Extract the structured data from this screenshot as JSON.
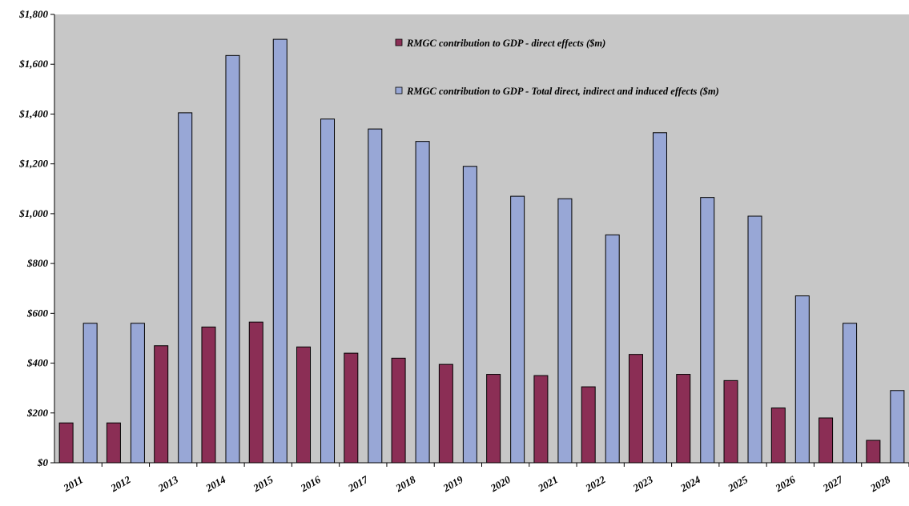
{
  "chart_data": {
    "type": "bar",
    "categories": [
      "2011",
      "2012",
      "2013",
      "2014",
      "2015",
      "2016",
      "2017",
      "2018",
      "2019",
      "2020",
      "2021",
      "2022",
      "2023",
      "2024",
      "2025",
      "2026",
      "2027",
      "2028"
    ],
    "series": [
      {
        "name": "RMGC contribution to GDP - direct effects ($m)",
        "color": "#8b2e55",
        "values": [
          160,
          160,
          470,
          545,
          565,
          465,
          440,
          420,
          395,
          355,
          350,
          305,
          435,
          355,
          330,
          220,
          180,
          90
        ]
      },
      {
        "name": "RMGC contribution to GDP - Total direct, indirect and induced effects ($m)",
        "color": "#98a7d6",
        "values": [
          560,
          560,
          1405,
          1635,
          1700,
          1380,
          1340,
          1290,
          1190,
          1070,
          1060,
          915,
          1325,
          1065,
          990,
          670,
          560,
          290
        ]
      }
    ],
    "ylim": [
      0,
      1800
    ],
    "yticks": [
      0,
      200,
      400,
      600,
      800,
      1000,
      1200,
      1400,
      1600,
      1800
    ],
    "ytick_labels": [
      "$0",
      "$200",
      "$400",
      "$600",
      "$800",
      "$1,000",
      "$1,200",
      "$1,400",
      "$1,600",
      "$1,800"
    ],
    "legend_position": "top-right",
    "grid": false,
    "plot_background": "#c7c7c7"
  }
}
